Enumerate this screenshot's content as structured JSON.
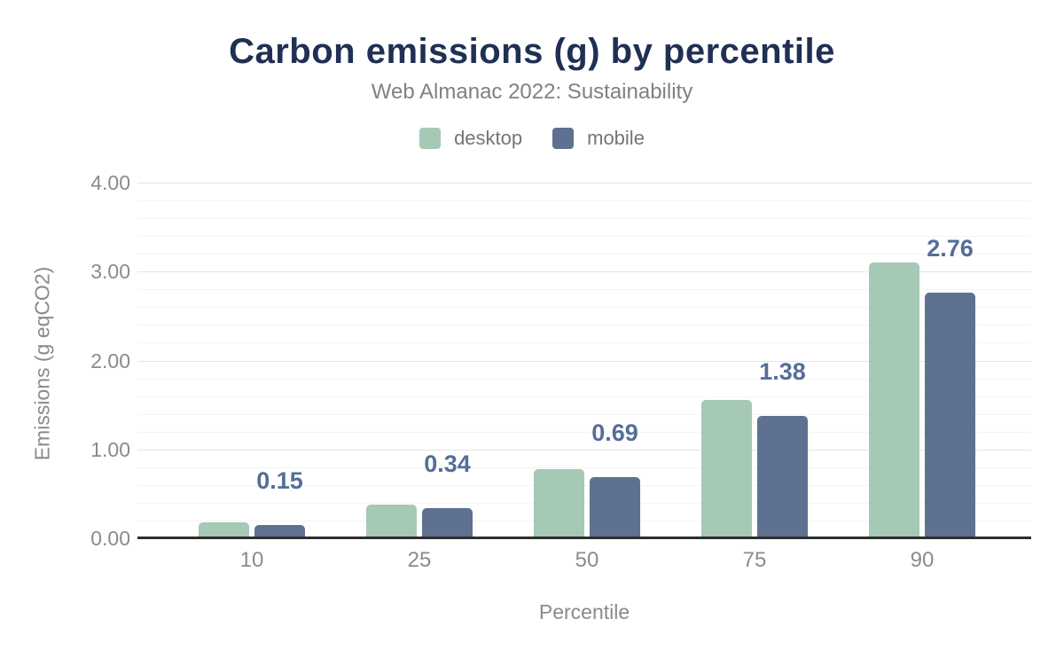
{
  "chart_data": {
    "type": "bar",
    "title": "Carbon emissions (g) by percentile",
    "subtitle": "Web Almanac 2022: Sustainability",
    "xlabel": "Percentile",
    "ylabel": "Emissions (g eqCO2)",
    "categories": [
      "10",
      "25",
      "50",
      "75",
      "90"
    ],
    "series": [
      {
        "name": "desktop",
        "color": "#a5c9b5",
        "values": [
          0.18,
          0.38,
          0.78,
          1.56,
          3.1
        ],
        "labels": null
      },
      {
        "name": "mobile",
        "color": "#5f7190",
        "values": [
          0.15,
          0.34,
          0.69,
          1.38,
          2.76
        ],
        "labels": [
          "0.15",
          "0.34",
          "0.69",
          "1.38",
          "2.76"
        ]
      }
    ],
    "ylim": [
      0,
      4
    ],
    "yticks": [
      {
        "value": 0,
        "label": "0.00"
      },
      {
        "value": 1,
        "label": "1.00"
      },
      {
        "value": 2,
        "label": "2.00"
      },
      {
        "value": 3,
        "label": "3.00"
      },
      {
        "value": 4,
        "label": "4.00"
      }
    ],
    "minor_grid_step": 0.2,
    "grid": true,
    "legend_position": "top",
    "annotated_series": "mobile"
  },
  "colors": {
    "title": "#1f3054",
    "annotation": "#546e99",
    "desktop": "#a5c9b5",
    "mobile": "#5f7190"
  }
}
